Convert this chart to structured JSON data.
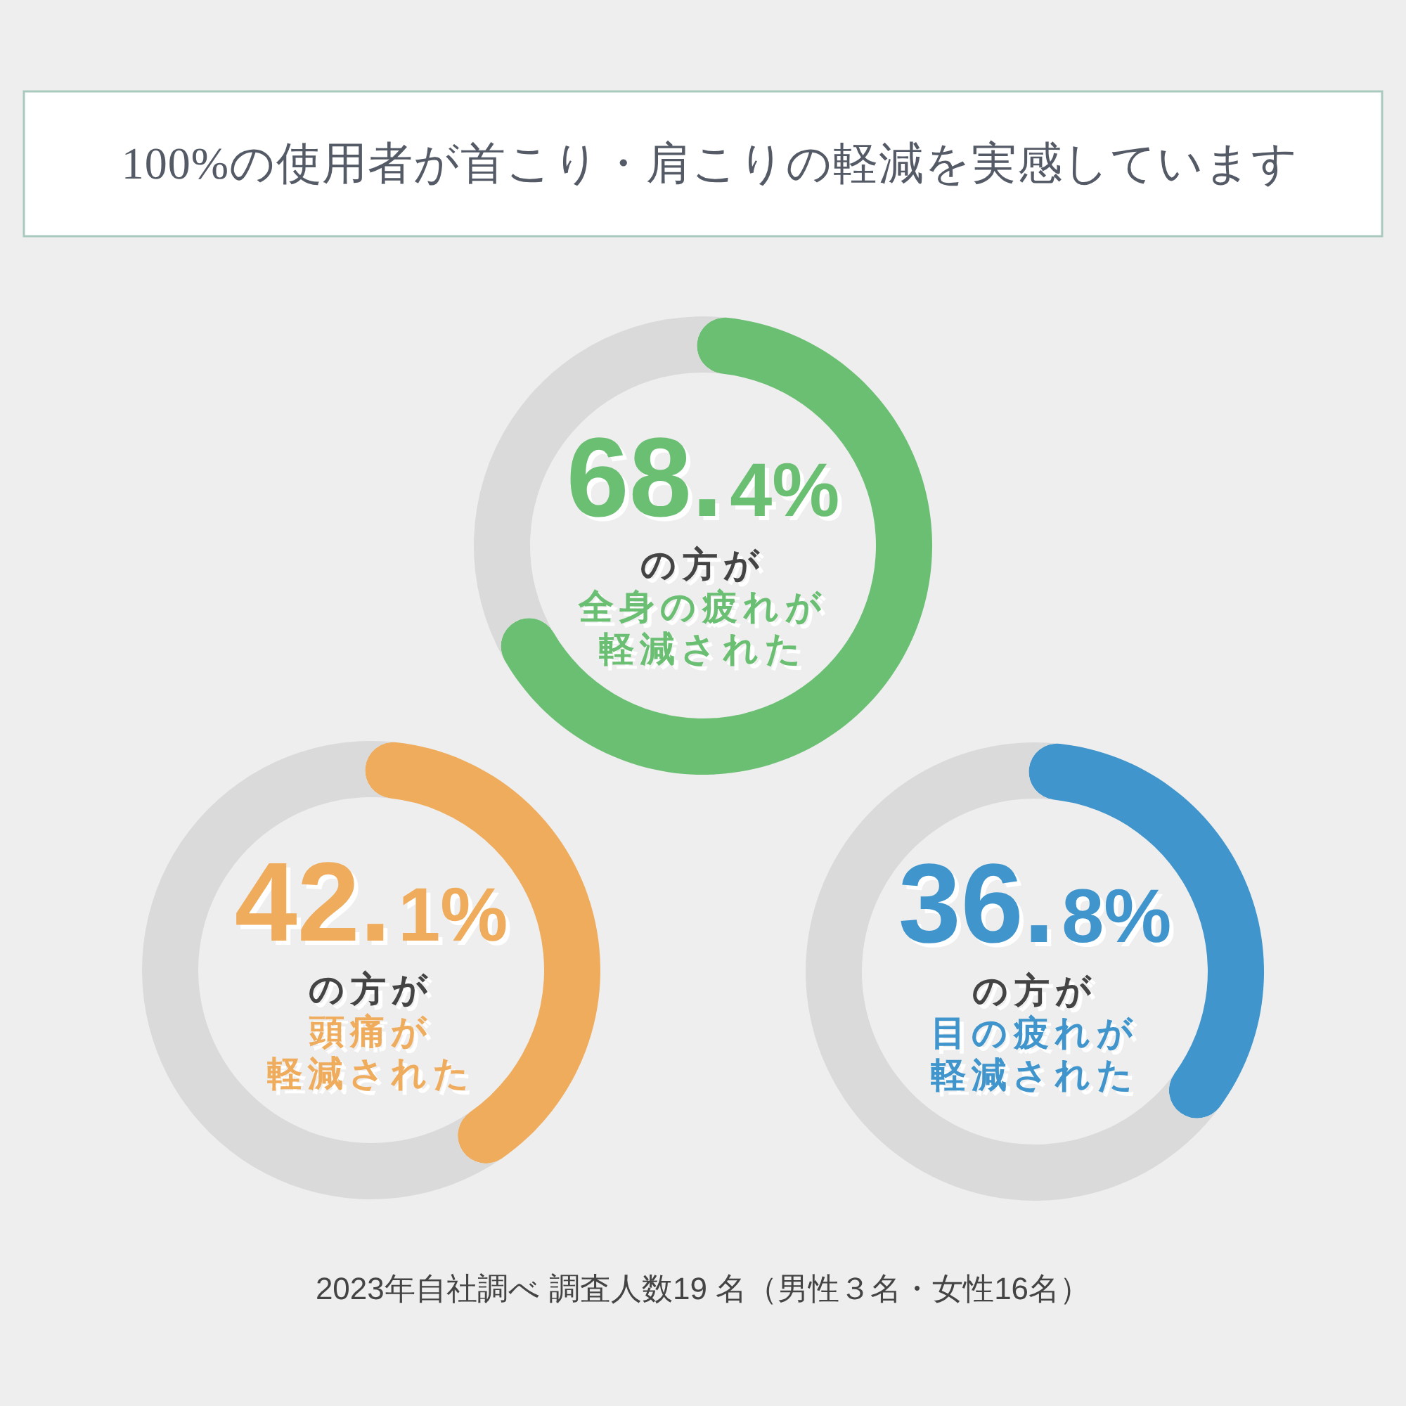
{
  "chart_data": [
    {
      "type": "donut",
      "title": "100%の使用者が首こり・肩こりの軽減を実感しています",
      "categories": [
        null,
        null
      ],
      "values": [
        68.4,
        31.6
      ],
      "colors": [
        "#6abf73",
        "#dadada"
      ],
      "value_labels": [
        "68.4%",
        null
      ],
      "annotations": [
        "の方が",
        "全身の疲れが",
        "軽減された"
      ]
    },
    {
      "type": "donut",
      "categories": [
        null,
        null
      ],
      "values": [
        42.1,
        57.9
      ],
      "colors": [
        "#eeac5c",
        "#dadada"
      ],
      "value_labels": [
        "42.1%",
        null
      ],
      "annotations": [
        "の方が",
        "頭痛が",
        "軽減された"
      ]
    },
    {
      "type": "donut",
      "categories": [
        null,
        null
      ],
      "values": [
        36.8,
        63.2
      ],
      "colors": [
        "#3f95cc",
        "#dadada"
      ],
      "value_labels": [
        "36.8%",
        null
      ],
      "annotations": [
        "の方が",
        "目の疲れが",
        "軽減された"
      ]
    },
    {
      "type": "other",
      "annotations": [
        "2023年自社調べ 調査人数19 名（男性３名・女性16名）"
      ]
    }
  ]
}
